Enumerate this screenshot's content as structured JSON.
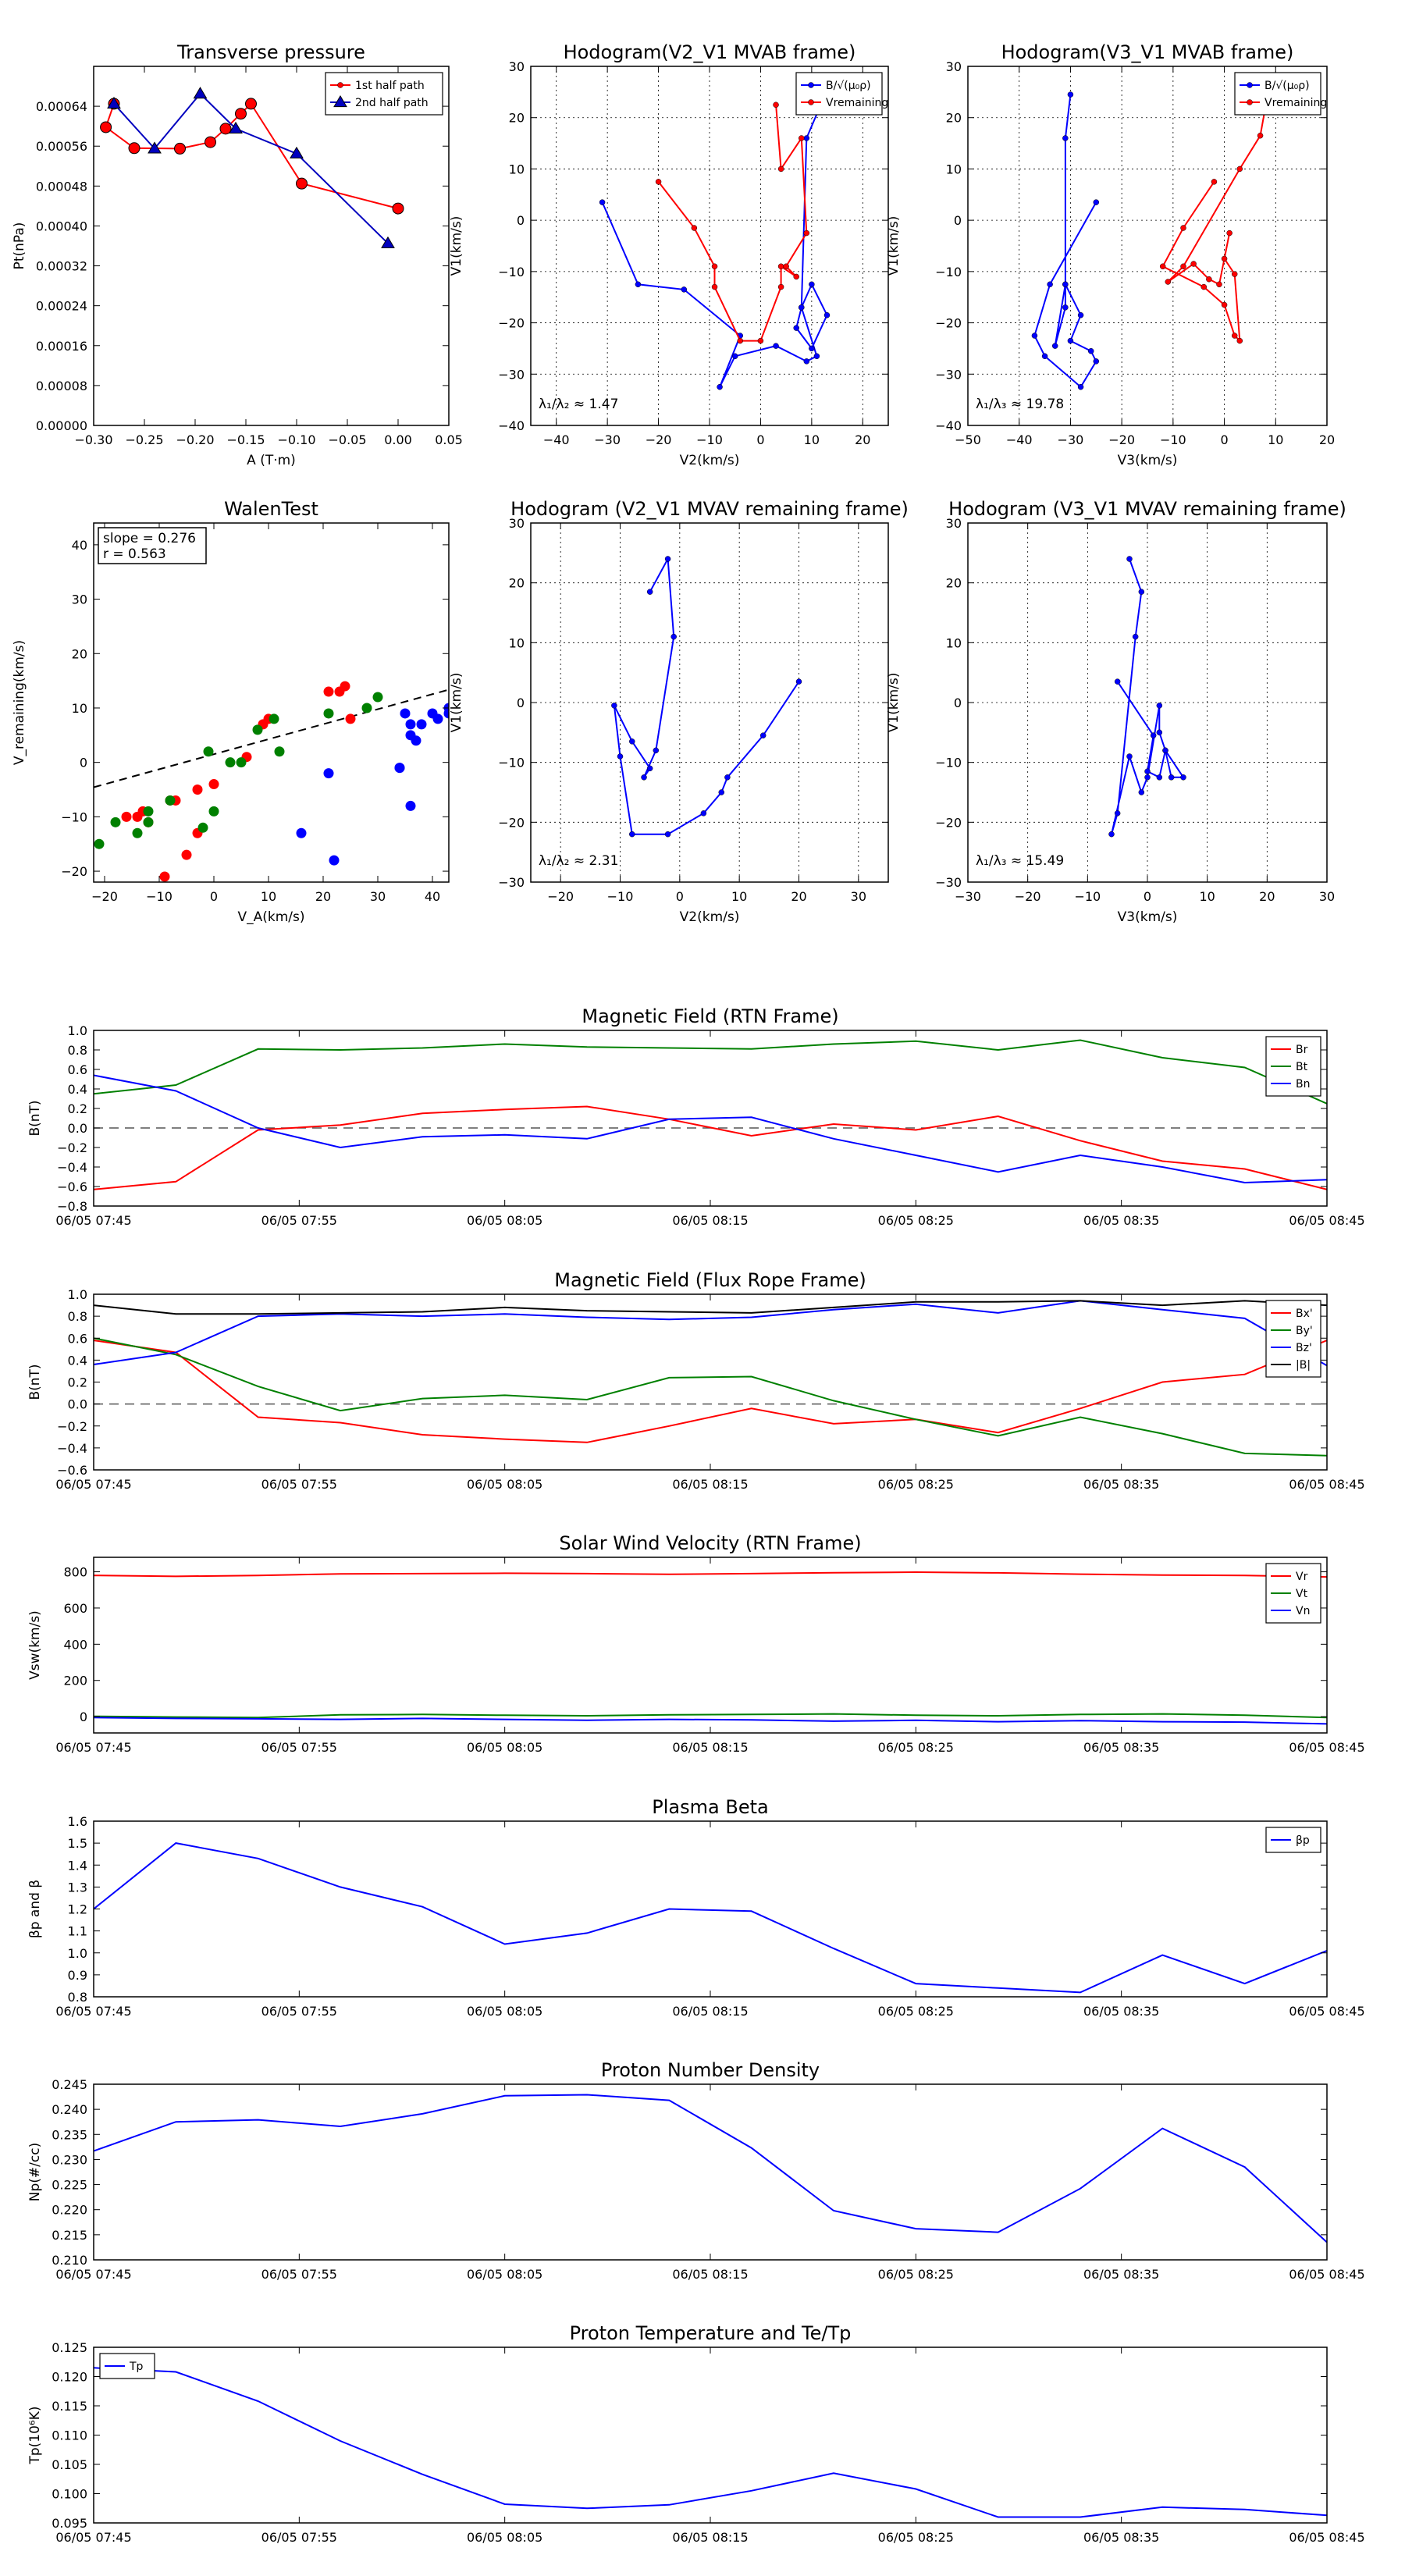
{
  "time_ticks": [
    "06/05 07:45",
    "06/05 07:55",
    "06/05 08:05",
    "06/05 08:15",
    "06/05 08:25",
    "06/05 08:35",
    "06/05 08:45"
  ],
  "chart_data": [
    {
      "id": "transverse-pressure",
      "type": "line",
      "title": "Transverse pressure",
      "xlabel": "A (T·m)",
      "ylabel": "Pt(nPa)",
      "xlim": [
        -0.3,
        0.05
      ],
      "ylim": [
        0,
        0.00072
      ],
      "xticks": [
        -0.3,
        -0.25,
        -0.2,
        -0.15,
        -0.1,
        -0.05,
        0.0,
        0.05
      ],
      "xticklabels": [
        "−0.30",
        "−0.25",
        "−0.20",
        "−0.15",
        "−0.10",
        "−0.05",
        "0.00",
        "0.05"
      ],
      "yticks": [
        0,
        8e-05,
        0.00016,
        0.00024,
        0.00032,
        0.0004,
        0.00048,
        0.00056,
        0.00064
      ],
      "yticklabels": [
        "0.00000",
        "0.00008",
        "0.00016",
        "0.00024",
        "0.00032",
        "0.00040",
        "0.00048",
        "0.00056",
        "0.00064"
      ],
      "grid": false,
      "legend": "top-right",
      "series": [
        {
          "name": "1st half path",
          "color": "#ff0000",
          "marker": "o",
          "x": [
            0.0,
            -0.095,
            -0.145,
            -0.155,
            -0.17,
            -0.185,
            -0.215,
            -0.26,
            -0.288,
            -0.28
          ],
          "y": [
            0.000435,
            0.000485,
            0.000645,
            0.000625,
            0.000595,
            0.000568,
            0.000555,
            0.000556,
            0.000598,
            0.000645
          ]
        },
        {
          "name": "2nd half path",
          "color": "#0000bf",
          "marker": "^",
          "x": [
            -0.28,
            -0.24,
            -0.195,
            -0.16,
            -0.1,
            -0.01
          ],
          "y": [
            0.000645,
            0.000555,
            0.000665,
            0.000595,
            0.000545,
            0.000365
          ]
        }
      ]
    },
    {
      "id": "hodogram-v2-mvab",
      "type": "line",
      "title": "Hodogram(V2_V1 MVAB frame)",
      "xlabel": "V2(km/s)",
      "ylabel": "V1(km/s)",
      "xlim": [
        -45,
        25
      ],
      "ylim": [
        -40,
        30
      ],
      "xticks": [
        -40,
        -30,
        -20,
        -10,
        0,
        10,
        20
      ],
      "yticks": [
        -40,
        -30,
        -20,
        -10,
        0,
        10,
        20,
        30
      ],
      "grid": true,
      "legend": "top-right",
      "annotation": "λ₁/λ₂ ≈ 1.47",
      "series": [
        {
          "name": "B/√(μ₀ρ)",
          "color": "#0000ff",
          "marker": "o",
          "x": [
            -31,
            -24,
            -15,
            -4,
            -8,
            -5,
            3,
            9,
            11,
            8,
            10,
            13,
            10,
            7,
            8,
            9,
            12
          ],
          "y": [
            3.5,
            -12.5,
            -13.5,
            -22.5,
            -32.5,
            -26.5,
            -24.5,
            -27.5,
            -26.5,
            -17,
            -12.5,
            -18.5,
            -25,
            -21,
            -17,
            16,
            23
          ]
        },
        {
          "name": "Vremaining",
          "color": "#ff0000",
          "marker": "o",
          "x": [
            -20,
            -13,
            -9,
            -9,
            -4,
            0,
            4,
            4,
            7,
            5,
            9,
            8,
            4,
            3
          ],
          "y": [
            7.5,
            -1.5,
            -9,
            -13,
            -23.5,
            -23.5,
            -13,
            -9,
            -11,
            -9,
            -2.5,
            16,
            10,
            22.5
          ]
        }
      ]
    },
    {
      "id": "hodogram-v3-mvab",
      "type": "line",
      "title": "Hodogram(V3_V1 MVAB frame)",
      "xlabel": "V3(km/s)",
      "ylabel": "V1(km/s)",
      "xlim": [
        -50,
        20
      ],
      "ylim": [
        -40,
        30
      ],
      "xticks": [
        -50,
        -40,
        -30,
        -20,
        -10,
        0,
        10,
        20
      ],
      "yticks": [
        -40,
        -30,
        -20,
        -10,
        0,
        10,
        20,
        30
      ],
      "grid": true,
      "legend": "top-right",
      "annotation": "λ₁/λ₃ ≈ 19.78",
      "series": [
        {
          "name": "B/√(μ₀ρ)",
          "color": "#0000ff",
          "marker": "o",
          "x": [
            -25,
            -34,
            -37,
            -35,
            -28,
            -25,
            -26,
            -30,
            -28,
            -31,
            -33,
            -31,
            -31,
            -31,
            -30
          ],
          "y": [
            3.5,
            -12.5,
            -22.5,
            -26.5,
            -32.5,
            -27.5,
            -25.5,
            -23.5,
            -18.5,
            -12.5,
            -24.5,
            -17,
            -12.5,
            16,
            24.5
          ]
        },
        {
          "name": "Vremaining",
          "color": "#ff0000",
          "marker": "o",
          "x": [
            -2,
            -8,
            -12,
            -4,
            0,
            2,
            3,
            2,
            0,
            1,
            -1,
            -3,
            -6,
            -11,
            -8,
            3,
            7,
            8
          ],
          "y": [
            7.5,
            -1.5,
            -9,
            -13,
            -16.5,
            -22.5,
            -23.5,
            -10.5,
            -7.5,
            -2.5,
            -12.5,
            -11.5,
            -8.5,
            -12,
            -9,
            10,
            16.5,
            22
          ]
        }
      ]
    },
    {
      "id": "walen-test",
      "type": "scatter",
      "title": "WalenTest",
      "xlabel": "V_A(km/s)",
      "ylabel": "V_remaining(km/s)",
      "xlim": [
        -22,
        43
      ],
      "ylim": [
        -22,
        44
      ],
      "xticks": [
        -20,
        -10,
        0,
        10,
        20,
        30,
        40
      ],
      "yticks": [
        -20,
        -10,
        0,
        10,
        20,
        30,
        40
      ],
      "grid": false,
      "annotation": "slope = 0.276\nr = 0.563",
      "fit": {
        "slope": 0.276,
        "intercept": 1.5
      },
      "series": [
        {
          "color": "#ff0000",
          "x": [
            -9,
            -5,
            -7,
            -12,
            -14,
            -13,
            -16,
            -8,
            -3,
            -3,
            0,
            6,
            9,
            10,
            21,
            23,
            24,
            25
          ],
          "y": [
            -21,
            -17,
            -7,
            -11,
            -10,
            -9,
            -10,
            -7,
            -13,
            -5,
            -4,
            1,
            7,
            8,
            13,
            13,
            14,
            8
          ]
        },
        {
          "color": "#008000",
          "x": [
            -21,
            -18,
            -12,
            -12,
            -14,
            -8,
            -2,
            -1,
            0,
            3,
            5,
            8,
            11,
            12,
            21,
            28,
            30
          ],
          "y": [
            -15,
            -11,
            -11,
            -9,
            -13,
            -7,
            -12,
            2,
            -9,
            0,
            0,
            6,
            8,
            2,
            9,
            10,
            12
          ]
        },
        {
          "color": "#0000ff",
          "x": [
            16,
            21,
            22,
            34,
            35,
            36,
            36,
            37,
            36,
            38,
            40,
            41,
            43,
            43,
            34
          ],
          "y": [
            -13,
            -2,
            -18,
            -1,
            9,
            7,
            5,
            4,
            -8,
            7,
            9,
            8,
            9,
            10,
            -1
          ]
        }
      ]
    },
    {
      "id": "hodogram-v2-mvav",
      "type": "line",
      "title": "Hodogram (V2_V1 MVAV remaining frame)",
      "xlabel": "V2(km/s)",
      "ylabel": "V1(km/s)",
      "xlim": [
        -25,
        35
      ],
      "ylim": [
        -30,
        30
      ],
      "xticks": [
        -20,
        -10,
        0,
        10,
        20,
        30
      ],
      "yticks": [
        -30,
        -20,
        -10,
        0,
        10,
        20,
        30
      ],
      "grid": true,
      "annotation": "λ₁/λ₂ ≈ 2.31",
      "series": [
        {
          "color": "#0000ff",
          "marker": "o",
          "x": [
            20,
            14,
            8,
            7,
            4,
            -2,
            -8,
            -10,
            -11,
            -8,
            -5,
            -6,
            -4,
            -1,
            -2,
            -5
          ],
          "y": [
            3.5,
            -5.5,
            -12.5,
            -15,
            -18.5,
            -22,
            -22,
            -9,
            -0.5,
            -6.5,
            -11,
            -12.5,
            -8,
            11,
            24,
            18.5
          ]
        }
      ]
    },
    {
      "id": "hodogram-v3-mvav",
      "type": "line",
      "title": "Hodogram (V3_V1 MVAV remaining frame)",
      "xlabel": "V3(km/s)",
      "ylabel": "V1(km/s)",
      "xlim": [
        -30,
        30
      ],
      "ylim": [
        -30,
        30
      ],
      "xticks": [
        -30,
        -20,
        -10,
        0,
        10,
        20,
        30
      ],
      "yticks": [
        -30,
        -20,
        -10,
        0,
        10,
        20,
        30
      ],
      "grid": true,
      "annotation": "λ₁/λ₃ ≈ 15.49",
      "series": [
        {
          "color": "#0000ff",
          "marker": "o",
          "x": [
            -5,
            1,
            0,
            2,
            3,
            4,
            6,
            3,
            2,
            2,
            0,
            -1,
            -3,
            -6,
            -5,
            -2,
            -1,
            -3
          ],
          "y": [
            3.5,
            -5.5,
            -11.5,
            -12.5,
            -8,
            -12.5,
            -12.5,
            -8,
            -5,
            -0.5,
            -12.5,
            -15,
            -9,
            -22,
            -18.5,
            11,
            18.5,
            24
          ]
        }
      ]
    },
    {
      "id": "mag-rtn",
      "type": "line",
      "title": "Magnetic Field (RTN Frame)",
      "ylabel": "B(nT)",
      "ylim": [
        -0.8,
        1.0
      ],
      "yticks": [
        -0.8,
        -0.6,
        -0.4,
        -0.2,
        0,
        0.2,
        0.4,
        0.6,
        0.8,
        1.0
      ],
      "yticklabels": [
        "−0.8",
        "−0.6",
        "−0.4",
        "−0.2",
        "0.0",
        "0.2",
        "0.4",
        "0.6",
        "0.8",
        "1.0"
      ],
      "zero_line": true,
      "legend": "top-right",
      "series": [
        {
          "name": "Br",
          "color": "#ff0000",
          "y": [
            -0.63,
            -0.55,
            -0.02,
            0.03,
            0.15,
            0.19,
            0.22,
            0.09,
            -0.08,
            0.04,
            -0.02,
            0.12,
            -0.13,
            -0.34,
            -0.42,
            -0.63
          ]
        },
        {
          "name": "Bt",
          "color": "#008000",
          "y": [
            0.35,
            0.44,
            0.81,
            0.8,
            0.82,
            0.86,
            0.83,
            0.82,
            0.81,
            0.86,
            0.89,
            0.8,
            0.9,
            0.72,
            0.62,
            0.25
          ]
        },
        {
          "name": "Bn",
          "color": "#0000ff",
          "y": [
            0.54,
            0.38,
            0.0,
            -0.2,
            -0.09,
            -0.07,
            -0.11,
            0.09,
            0.11,
            -0.11,
            -0.28,
            -0.45,
            -0.28,
            -0.4,
            -0.56,
            -0.53
          ]
        }
      ]
    },
    {
      "id": "mag-flux-rope",
      "type": "line",
      "title": "Magnetic Field (Flux Rope Frame)",
      "ylabel": "B(nT)",
      "ylim": [
        -0.6,
        1.0
      ],
      "yticks": [
        -0.6,
        -0.4,
        -0.2,
        0,
        0.2,
        0.4,
        0.6,
        0.8,
        1.0
      ],
      "yticklabels": [
        "−0.6",
        "−0.4",
        "−0.2",
        "0.0",
        "0.2",
        "0.4",
        "0.6",
        "0.8",
        "1.0"
      ],
      "zero_line": true,
      "legend": "top-right",
      "series": [
        {
          "name": "Bx'",
          "color": "#ff0000",
          "y": [
            0.58,
            0.47,
            -0.12,
            -0.17,
            -0.28,
            -0.32,
            -0.35,
            -0.2,
            -0.04,
            -0.18,
            -0.14,
            -0.26,
            -0.04,
            0.2,
            0.27,
            0.58
          ]
        },
        {
          "name": "By'",
          "color": "#008000",
          "y": [
            0.6,
            0.45,
            0.16,
            -0.06,
            0.05,
            0.08,
            0.04,
            0.24,
            0.25,
            0.03,
            -0.14,
            -0.29,
            -0.12,
            -0.27,
            -0.45,
            -0.47
          ]
        },
        {
          "name": "Bz'",
          "color": "#0000ff",
          "y": [
            0.36,
            0.47,
            0.8,
            0.82,
            0.8,
            0.82,
            0.79,
            0.77,
            0.79,
            0.86,
            0.91,
            0.83,
            0.94,
            0.86,
            0.78,
            0.35
          ]
        },
        {
          "name": "|B|",
          "color": "#000000",
          "y": [
            0.9,
            0.82,
            0.82,
            0.83,
            0.84,
            0.88,
            0.85,
            0.84,
            0.83,
            0.88,
            0.93,
            0.93,
            0.94,
            0.9,
            0.94,
            0.9
          ]
        }
      ]
    },
    {
      "id": "solar-wind",
      "type": "line",
      "title": "Solar Wind Velocity (RTN Frame)",
      "ylabel": "Vsw(km/s)",
      "ylim": [
        -90,
        880
      ],
      "yticks": [
        0,
        200,
        400,
        600,
        800
      ],
      "legend": "top-right",
      "series": [
        {
          "name": "Vr",
          "color": "#ff0000",
          "y": [
            780,
            775,
            780,
            788,
            790,
            792,
            790,
            786,
            790,
            795,
            798,
            794,
            787,
            782,
            780,
            772
          ]
        },
        {
          "name": "Vt",
          "color": "#008000",
          "y": [
            2,
            -2,
            -5,
            10,
            12,
            8,
            5,
            10,
            12,
            15,
            8,
            5,
            12,
            15,
            8,
            -5
          ]
        },
        {
          "name": "Vn",
          "color": "#0000ff",
          "y": [
            -5,
            -10,
            -12,
            -15,
            -10,
            -15,
            -20,
            -15,
            -18,
            -25,
            -20,
            -28,
            -22,
            -28,
            -30,
            -40
          ]
        }
      ]
    },
    {
      "id": "plasma-beta",
      "type": "line",
      "title": "Plasma Beta",
      "ylabel": "βp and β",
      "ylim": [
        0.8,
        1.6
      ],
      "yticks": [
        0.8,
        0.9,
        1.0,
        1.1,
        1.2,
        1.3,
        1.4,
        1.5,
        1.6
      ],
      "yticklabels": [
        "0.8",
        "0.9",
        "1.0",
        "1.1",
        "1.2",
        "1.3",
        "1.4",
        "1.5",
        "1.6"
      ],
      "legend": "top-right",
      "series": [
        {
          "name": "βp",
          "color": "#0000ff",
          "y": [
            1.2,
            1.5,
            1.43,
            1.3,
            1.21,
            1.04,
            1.09,
            1.2,
            1.19,
            1.02,
            0.86,
            0.84,
            0.82,
            0.99,
            0.86,
            1.01
          ]
        }
      ]
    },
    {
      "id": "proton-density",
      "type": "line",
      "title": "Proton Number Density",
      "ylabel": "Np(#/cc)",
      "ylim": [
        0.21,
        0.245
      ],
      "yticks": [
        0.21,
        0.215,
        0.22,
        0.225,
        0.23,
        0.235,
        0.24,
        0.245
      ],
      "yticklabels": [
        "0.210",
        "0.215",
        "0.220",
        "0.225",
        "0.230",
        "0.235",
        "0.240",
        "0.245"
      ],
      "series": [
        {
          "color": "#0000ff",
          "y": [
            0.2317,
            0.2375,
            0.2379,
            0.2366,
            0.2391,
            0.2427,
            0.2429,
            0.2418,
            0.2323,
            0.2198,
            0.2162,
            0.2155,
            0.2242,
            0.2362,
            0.2285,
            0.2135
          ]
        }
      ]
    },
    {
      "id": "proton-temp",
      "type": "line",
      "title": "Proton Temperature and Te/Tp",
      "ylabel": "Tp(10⁶K)",
      "ylim": [
        0.095,
        0.125
      ],
      "yticks": [
        0.095,
        0.1,
        0.105,
        0.11,
        0.115,
        0.12,
        0.125
      ],
      "yticklabels": [
        "0.095",
        "0.100",
        "0.105",
        "0.110",
        "0.115",
        "0.120",
        "0.125"
      ],
      "legend": "top-left",
      "series": [
        {
          "name": "Tp",
          "color": "#0000ff",
          "y": [
            0.1215,
            0.1208,
            0.1158,
            0.109,
            0.1033,
            0.0982,
            0.0975,
            0.0981,
            0.1005,
            0.1035,
            0.1008,
            0.096,
            0.096,
            0.0977,
            0.0973,
            0.0963
          ]
        }
      ]
    }
  ]
}
